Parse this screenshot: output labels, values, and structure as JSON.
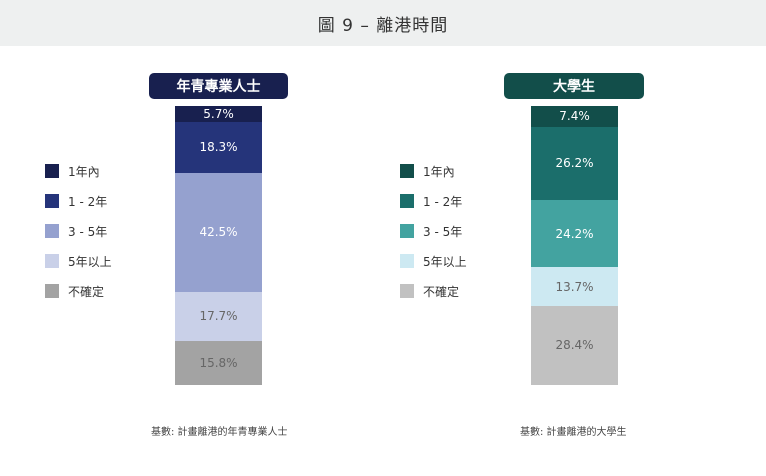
{
  "page_title": "圖 9 – 離港時間",
  "chart_data": [
    {
      "type": "bar",
      "stacked": true,
      "title": "年青專業人士",
      "header_color": "#18204f",
      "categories": [
        "1年內",
        "1 - 2年",
        "3 - 5年",
        "5年以上",
        "不確定"
      ],
      "values": [
        5.7,
        18.3,
        42.5,
        17.7,
        15.8
      ],
      "labels": [
        "5.7%",
        "18.3%",
        "42.5%",
        "17.7%",
        "15.8%"
      ],
      "colors": [
        "#18204f",
        "#25347a",
        "#95a1cf",
        "#c9d0e8",
        "#a3a3a3"
      ],
      "label_colors": [
        "#ffffff",
        "#ffffff",
        "#ffffff",
        "#666666",
        "#666666"
      ],
      "source": "基數: 計畫離港的年青專業人士"
    },
    {
      "type": "bar",
      "stacked": true,
      "title": "大學生",
      "header_color": "#124e4a",
      "categories": [
        "1年內",
        "1 - 2年",
        "3 - 5年",
        "5年以上",
        "不確定"
      ],
      "values": [
        7.4,
        26.2,
        24.2,
        13.7,
        28.4
      ],
      "labels": [
        "7.4%",
        "26.2%",
        "24.2%",
        "13.7%",
        "28.4%"
      ],
      "colors": [
        "#124e4a",
        "#1b6e6b",
        "#43a3a0",
        "#cde9f2",
        "#c1c1c1"
      ],
      "label_colors": [
        "#ffffff",
        "#ffffff",
        "#ffffff",
        "#666666",
        "#666666"
      ],
      "source": "基數: 計畫離港的大學生"
    }
  ]
}
